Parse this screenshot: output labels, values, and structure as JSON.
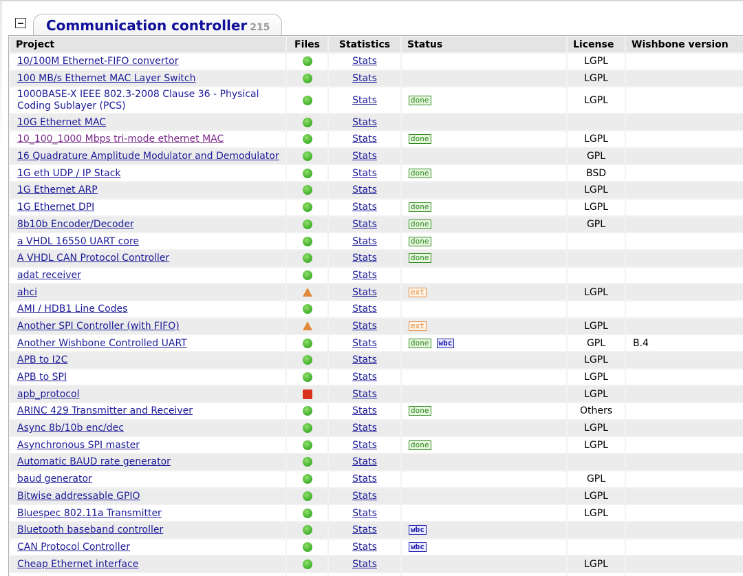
{
  "category": {
    "title": "Communication controller",
    "count": "215"
  },
  "columns": {
    "project": "Project",
    "files": "Files",
    "statistics": "Statistics",
    "status": "Status",
    "license": "License",
    "wishbone": "Wishbone version"
  },
  "badge_labels": {
    "done": "done",
    "ext": "ext",
    "wbc": "wbc"
  },
  "status_colors": {
    "ok": "#3fae2a",
    "warning": "#e08a3a",
    "error": "#d8321e",
    "link": "#1a1a99",
    "title": "#10109a"
  },
  "rows": [
    {
      "project": "10/100M Ethernet-FIFO convertor",
      "files": "ok",
      "stats": "Stats",
      "status": [],
      "license": "LGPL",
      "wishbone": ""
    },
    {
      "project": "100 MB/s Ethernet MAC Layer Switch",
      "files": "ok",
      "stats": "Stats",
      "status": [],
      "license": "LGPL",
      "wishbone": ""
    },
    {
      "project": "1000BASE-X IEEE 802.3-2008 Clause 36 - Physical Coding Sublayer (PCS)",
      "project_lines": [
        "1000BASE-X IEEE 802.3-2008 Clause 36 - Physical",
        "Coding Sublayer (PCS)"
      ],
      "files": "ok",
      "stats": "Stats",
      "status": [
        "done"
      ],
      "license": "LGPL",
      "wishbone": ""
    },
    {
      "project": "10G Ethernet MAC",
      "files": "ok",
      "stats": "Stats",
      "status": [],
      "license": "",
      "wishbone": ""
    },
    {
      "project": "10_100_1000 Mbps tri-mode ethernet MAC",
      "visited": true,
      "files": "ok",
      "stats": "Stats",
      "status": [
        "done"
      ],
      "license": "LGPL",
      "wishbone": ""
    },
    {
      "project": "16 Quadrature Amplitude Modulator and Demodulator",
      "files": "ok",
      "stats": "Stats",
      "status": [],
      "license": "GPL",
      "wishbone": ""
    },
    {
      "project": "1G eth UDP / IP Stack",
      "files": "ok",
      "stats": "Stats",
      "status": [
        "done"
      ],
      "license": "BSD",
      "wishbone": ""
    },
    {
      "project": "1G Ethernet ARP",
      "files": "ok",
      "stats": "Stats",
      "status": [],
      "license": "LGPL",
      "wishbone": ""
    },
    {
      "project": "1G Ethernet DPI",
      "files": "ok",
      "stats": "Stats",
      "status": [
        "done"
      ],
      "license": "LGPL",
      "wishbone": ""
    },
    {
      "project": "8b10b Encoder/Decoder",
      "files": "ok",
      "stats": "Stats",
      "status": [
        "done"
      ],
      "license": "GPL",
      "wishbone": ""
    },
    {
      "project": "a VHDL 16550 UART core",
      "files": "ok",
      "stats": "Stats",
      "status": [
        "done"
      ],
      "license": "",
      "wishbone": ""
    },
    {
      "project": "A VHDL CAN Protocol Controller",
      "files": "ok",
      "stats": "Stats",
      "status": [
        "done"
      ],
      "license": "",
      "wishbone": ""
    },
    {
      "project": "adat receiver",
      "files": "ok",
      "stats": "Stats",
      "status": [],
      "license": "",
      "wishbone": ""
    },
    {
      "project": "ahci",
      "files": "warning",
      "stats": "Stats",
      "status": [
        "ext"
      ],
      "license": "LGPL",
      "wishbone": ""
    },
    {
      "project": "AMI / HDB1 Line Codes",
      "files": "ok",
      "stats": "Stats",
      "status": [],
      "license": "",
      "wishbone": ""
    },
    {
      "project": "Another SPI Controller (with FIFO)",
      "files": "warning",
      "stats": "Stats",
      "status": [
        "ext"
      ],
      "license": "LGPL",
      "wishbone": ""
    },
    {
      "project": "Another Wishbone Controlled UART",
      "files": "ok",
      "stats": "Stats",
      "status": [
        "done",
        "wbc"
      ],
      "license": "GPL",
      "wishbone": "B.4"
    },
    {
      "project": "APB to I2C",
      "files": "ok",
      "stats": "Stats",
      "status": [],
      "license": "LGPL",
      "wishbone": ""
    },
    {
      "project": "APB to SPI",
      "files": "ok",
      "stats": "Stats",
      "status": [],
      "license": "LGPL",
      "wishbone": ""
    },
    {
      "project": "apb_protocol",
      "files": "error",
      "stats": "Stats",
      "status": [],
      "license": "LGPL",
      "wishbone": ""
    },
    {
      "project": "ARINC 429 Transmitter and Receiver",
      "files": "ok",
      "stats": "Stats",
      "status": [
        "done"
      ],
      "license": "Others",
      "wishbone": ""
    },
    {
      "project": "Async 8b/10b enc/dec",
      "files": "ok",
      "stats": "Stats",
      "status": [],
      "license": "LGPL",
      "wishbone": ""
    },
    {
      "project": "Asynchronous SPI master",
      "files": "ok",
      "stats": "Stats",
      "status": [
        "done"
      ],
      "license": "LGPL",
      "wishbone": ""
    },
    {
      "project": "Automatic BAUD rate generator",
      "files": "ok",
      "stats": "Stats",
      "status": [],
      "license": "",
      "wishbone": ""
    },
    {
      "project": "baud generator",
      "files": "ok",
      "stats": "Stats",
      "status": [],
      "license": "GPL",
      "wishbone": ""
    },
    {
      "project": "Bitwise addressable GPIO",
      "files": "ok",
      "stats": "Stats",
      "status": [],
      "license": "LGPL",
      "wishbone": ""
    },
    {
      "project": "Bluespec 802.11a Transmitter",
      "files": "ok",
      "stats": "Stats",
      "status": [],
      "license": "LGPL",
      "wishbone": ""
    },
    {
      "project": "Bluetooth baseband controller",
      "files": "ok",
      "stats": "Stats",
      "status": [
        "wbc"
      ],
      "license": "",
      "wishbone": ""
    },
    {
      "project": "CAN Protocol Controller",
      "files": "ok",
      "stats": "Stats",
      "status": [
        "wbc"
      ],
      "license": "",
      "wishbone": ""
    },
    {
      "project": "Cheap Ethernet interface",
      "files": "ok",
      "stats": "Stats",
      "status": [],
      "license": "LGPL",
      "wishbone": ""
    },
    {
      "project": "",
      "files": "ok",
      "stats": "",
      "status": [],
      "license": "",
      "wishbone": ""
    }
  ]
}
